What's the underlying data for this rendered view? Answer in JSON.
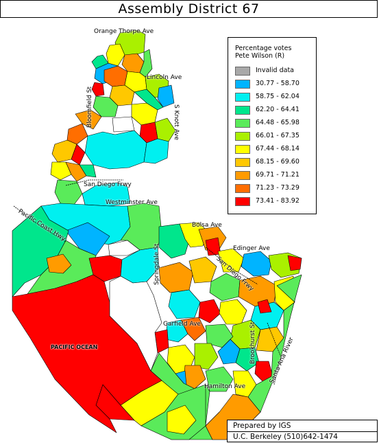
{
  "title": "Assembly District 67",
  "legend": {
    "title_lines": [
      "Percentage votes",
      "Pete Wilson (R)"
    ],
    "items": [
      {
        "label": "Invalid data",
        "color": "#a8a8a8"
      },
      {
        "label": "30.77 - 58.70",
        "color": "#00b4ff"
      },
      {
        "label": "58.75 - 62.04",
        "color": "#00f0f0"
      },
      {
        "label": "62.20 - 64.41",
        "color": "#00e68c"
      },
      {
        "label": "64.48 - 65.98",
        "color": "#5aeb5a"
      },
      {
        "label": "66.01 - 67.35",
        "color": "#aaf000"
      },
      {
        "label": "67.44 - 68.14",
        "color": "#ffff00"
      },
      {
        "label": "68.15 - 69.60",
        "color": "#ffc800"
      },
      {
        "label": "69.71 - 71.21",
        "color": "#ff9b00"
      },
      {
        "label": "71.23 - 73.29",
        "color": "#ff6e00"
      },
      {
        "label": "73.41 - 83.92",
        "color": "#ff0000"
      }
    ]
  },
  "streets": {
    "orange_thorpe": "Orange Thorpe Ave",
    "lincoln": "Lincoln Ave",
    "bloomfield": "Bloomfield St",
    "knott": "S Knott Ave",
    "san_diego_frwy_north": "San Diego Frwy",
    "westminster": "Westminster Ave",
    "pacific_coast_hwy": "Pacific Coast Hwy",
    "bolsa": "Bolsa Ave",
    "edinger": "Edinger Ave",
    "springdale": "Springdale St",
    "san_diego_frwy_south": "San Diego Frwy",
    "garfield": "Garfield Ave",
    "brookhurst": "Brookhurst St",
    "santa_ana_river": "Santa Ana River",
    "hamilton": "Hamilton Ave",
    "pacific_ocean": "PACIFIC OCEAN"
  },
  "credit": {
    "line1": "Prepared by IGS",
    "line2": "U.C. Berkeley  (510)642-1474"
  }
}
